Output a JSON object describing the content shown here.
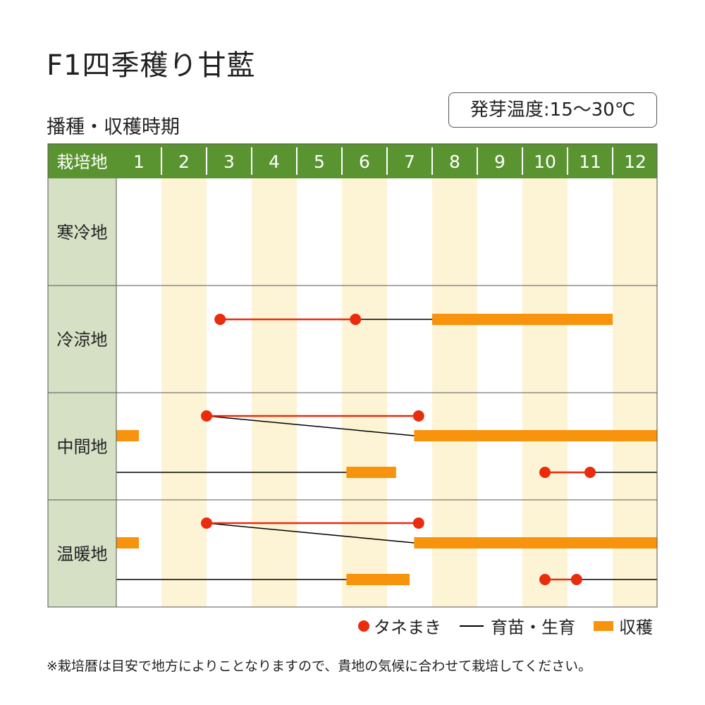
{
  "title": "F1四季穫り甘藍",
  "subtitle": "播種・収穫時期",
  "germination": "発芽温度:15〜30℃",
  "legend": {
    "sowing": "タネまき",
    "growing": "育苗・生育",
    "harvest": "収穫"
  },
  "note": "※栽培暦は目安で地方によりことなりますので、貴地の気候に合わせて栽培してください。",
  "colors": {
    "header": "#5a9430",
    "region_bg": "#d6e0c5",
    "stripe": "#fdf4d6",
    "sowing": "#ea2b0c",
    "harvest": "#f7930c",
    "growing": "#000000"
  },
  "chart_data": {
    "type": "table",
    "header_label": "栽培地",
    "months": [
      "1",
      "2",
      "3",
      "4",
      "5",
      "6",
      "7",
      "8",
      "9",
      "10",
      "11",
      "12"
    ],
    "regions": [
      {
        "name": "寒冷地",
        "tracks": []
      },
      {
        "name": "冷涼地",
        "tracks": [
          {
            "sow": [
              3.3,
              6.3
            ],
            "grow": [
              [
                6.3,
                8.0
              ]
            ],
            "harvest": [
              [
                8.0,
                12.0
              ]
            ]
          }
        ]
      },
      {
        "name": "中間地",
        "tracks": [
          {
            "sow": [
              3.0,
              7.7
            ],
            "grow": [
              [
                3.0,
                7.6
              ]
            ],
            "harvest": [
              [
                1.0,
                1.5
              ],
              [
                7.6,
                13.0
              ]
            ]
          },
          {
            "sow": [
              10.5,
              11.5
            ],
            "grow": [
              [
                1.0,
                6.1
              ],
              [
                11.5,
                13.0
              ]
            ],
            "harvest": [
              [
                6.1,
                7.2
              ]
            ]
          }
        ]
      },
      {
        "name": "温暖地",
        "tracks": [
          {
            "sow": [
              3.0,
              7.7
            ],
            "grow": [
              [
                3.0,
                7.6
              ]
            ],
            "harvest": [
              [
                1.0,
                1.5
              ],
              [
                7.6,
                13.0
              ]
            ]
          },
          {
            "sow": [
              10.5,
              11.2
            ],
            "grow": [
              [
                1.0,
                6.1
              ],
              [
                11.2,
                13.0
              ]
            ],
            "harvest": [
              [
                6.1,
                7.5
              ]
            ]
          }
        ]
      }
    ]
  }
}
